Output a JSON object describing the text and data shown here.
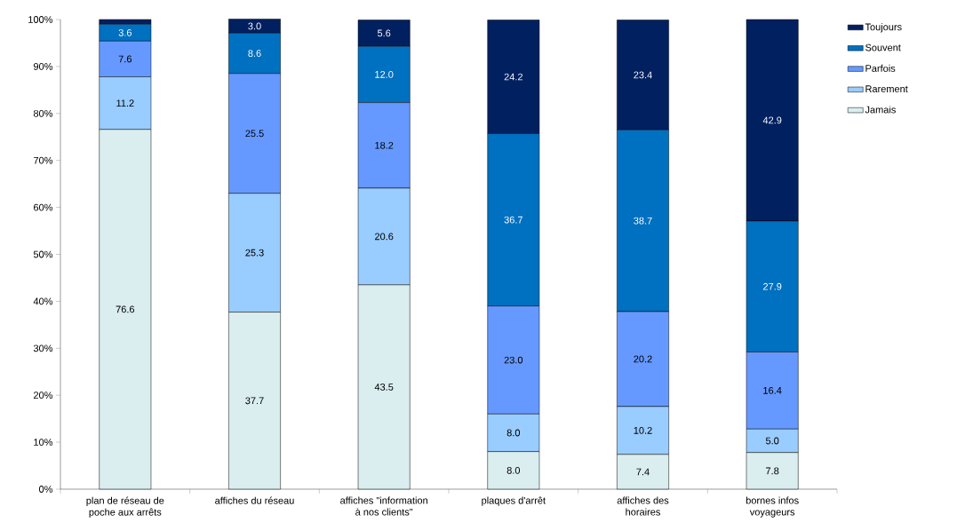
{
  "chart_data": {
    "type": "bar",
    "stacked": true,
    "categories": [
      "plan de réseau de poche aux arrêts",
      "affiches du réseau",
      "affiches \"information à nos clients\"",
      "plaques d'arrêt",
      "affiches des horaires",
      "bornes infos voyageurs"
    ],
    "series": [
      {
        "name": "Jamais",
        "color": "#daedef",
        "values": [
          76.6,
          37.7,
          43.5,
          8.0,
          7.4,
          7.8
        ],
        "value_labels": [
          "76.6",
          "37.7",
          "43.5",
          "8.0",
          "7.4",
          "7.8"
        ]
      },
      {
        "name": "Rarement",
        "color": "#99ccff",
        "values": [
          11.2,
          25.3,
          20.6,
          8.0,
          10.2,
          5.0
        ],
        "value_labels": [
          "11.2",
          "25.3",
          "20.6",
          "8.0",
          "10.2",
          "5.0"
        ]
      },
      {
        "name": "Parfois",
        "color": "#6699ff",
        "values": [
          7.6,
          25.5,
          18.2,
          23.0,
          20.2,
          16.4
        ],
        "value_labels": [
          "7.6",
          "25.5",
          "18.2",
          "23.0",
          "20.2",
          "16.4"
        ]
      },
      {
        "name": "Souvent",
        "color": "#0070c0",
        "values": [
          3.6,
          8.6,
          12.0,
          36.7,
          38.7,
          27.9
        ],
        "value_labels": [
          "3.6",
          "8.6",
          "12.0",
          "36.7",
          "38.7",
          "27.9"
        ]
      },
      {
        "name": "Toujours",
        "color": "#002060",
        "values": [
          1.0,
          3.0,
          5.6,
          24.2,
          23.4,
          42.9
        ],
        "value_labels": [
          null,
          "3.0",
          "5.6",
          "24.2",
          "23.4",
          "42.9"
        ]
      }
    ],
    "ylim": [
      0,
      100
    ],
    "yticks": [
      {
        "value": 0,
        "label": "0%"
      },
      {
        "value": 10,
        "label": "10%"
      },
      {
        "value": 20,
        "label": "20%"
      },
      {
        "value": 30,
        "label": "30%"
      },
      {
        "value": 40,
        "label": "40%"
      },
      {
        "value": 50,
        "label": "50%"
      },
      {
        "value": 60,
        "label": "60%"
      },
      {
        "value": 70,
        "label": "70%"
      },
      {
        "value": 80,
        "label": "80%"
      },
      {
        "value": 90,
        "label": "90%"
      },
      {
        "value": 100,
        "label": "100%"
      }
    ],
    "grid": false,
    "legend": "top right"
  }
}
